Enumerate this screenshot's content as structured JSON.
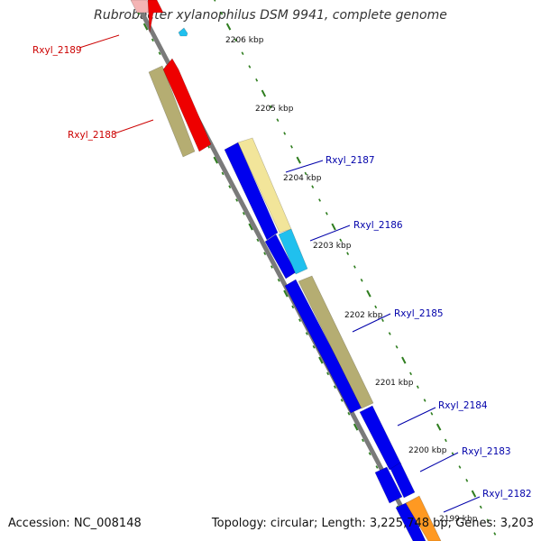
{
  "title": "Rubrobacter xylanophilus DSM 9941, complete genome",
  "footer": {
    "accession": "Accession: NC_008148",
    "summary": "Topology: circular; Length: 3,225,748 bp; Genes: 3,203"
  },
  "colors": {
    "backbone": "#7a7a7a",
    "tick_marks": "#2e7d1e",
    "reverse_label": "#cc0000",
    "forward_label": "#0000aa",
    "cds_blue": "#0000ee",
    "cds_khaki": "#b5ad72",
    "cds_pale_yellow": "#f2e59a",
    "cds_cyan": "#20c0ee",
    "cds_red": "#ee0000",
    "cds_pink": "#f4b4b4",
    "cds_orange": "#ff9922"
  },
  "tick_labels": [
    "2206 kbp",
    "2205 kbp",
    "2204 kbp",
    "2203 kbp",
    "2202 kbp",
    "2201 kbp",
    "2200 kbp",
    "2199 kbp"
  ],
  "gene_labels": {
    "reverse": [
      "Rxyl_2189",
      "Rxyl_2188"
    ],
    "forward": [
      "Rxyl_2187",
      "Rxyl_2186",
      "Rxyl_2185",
      "Rxyl_2184",
      "Rxyl_2183",
      "Rxyl_2182"
    ]
  }
}
